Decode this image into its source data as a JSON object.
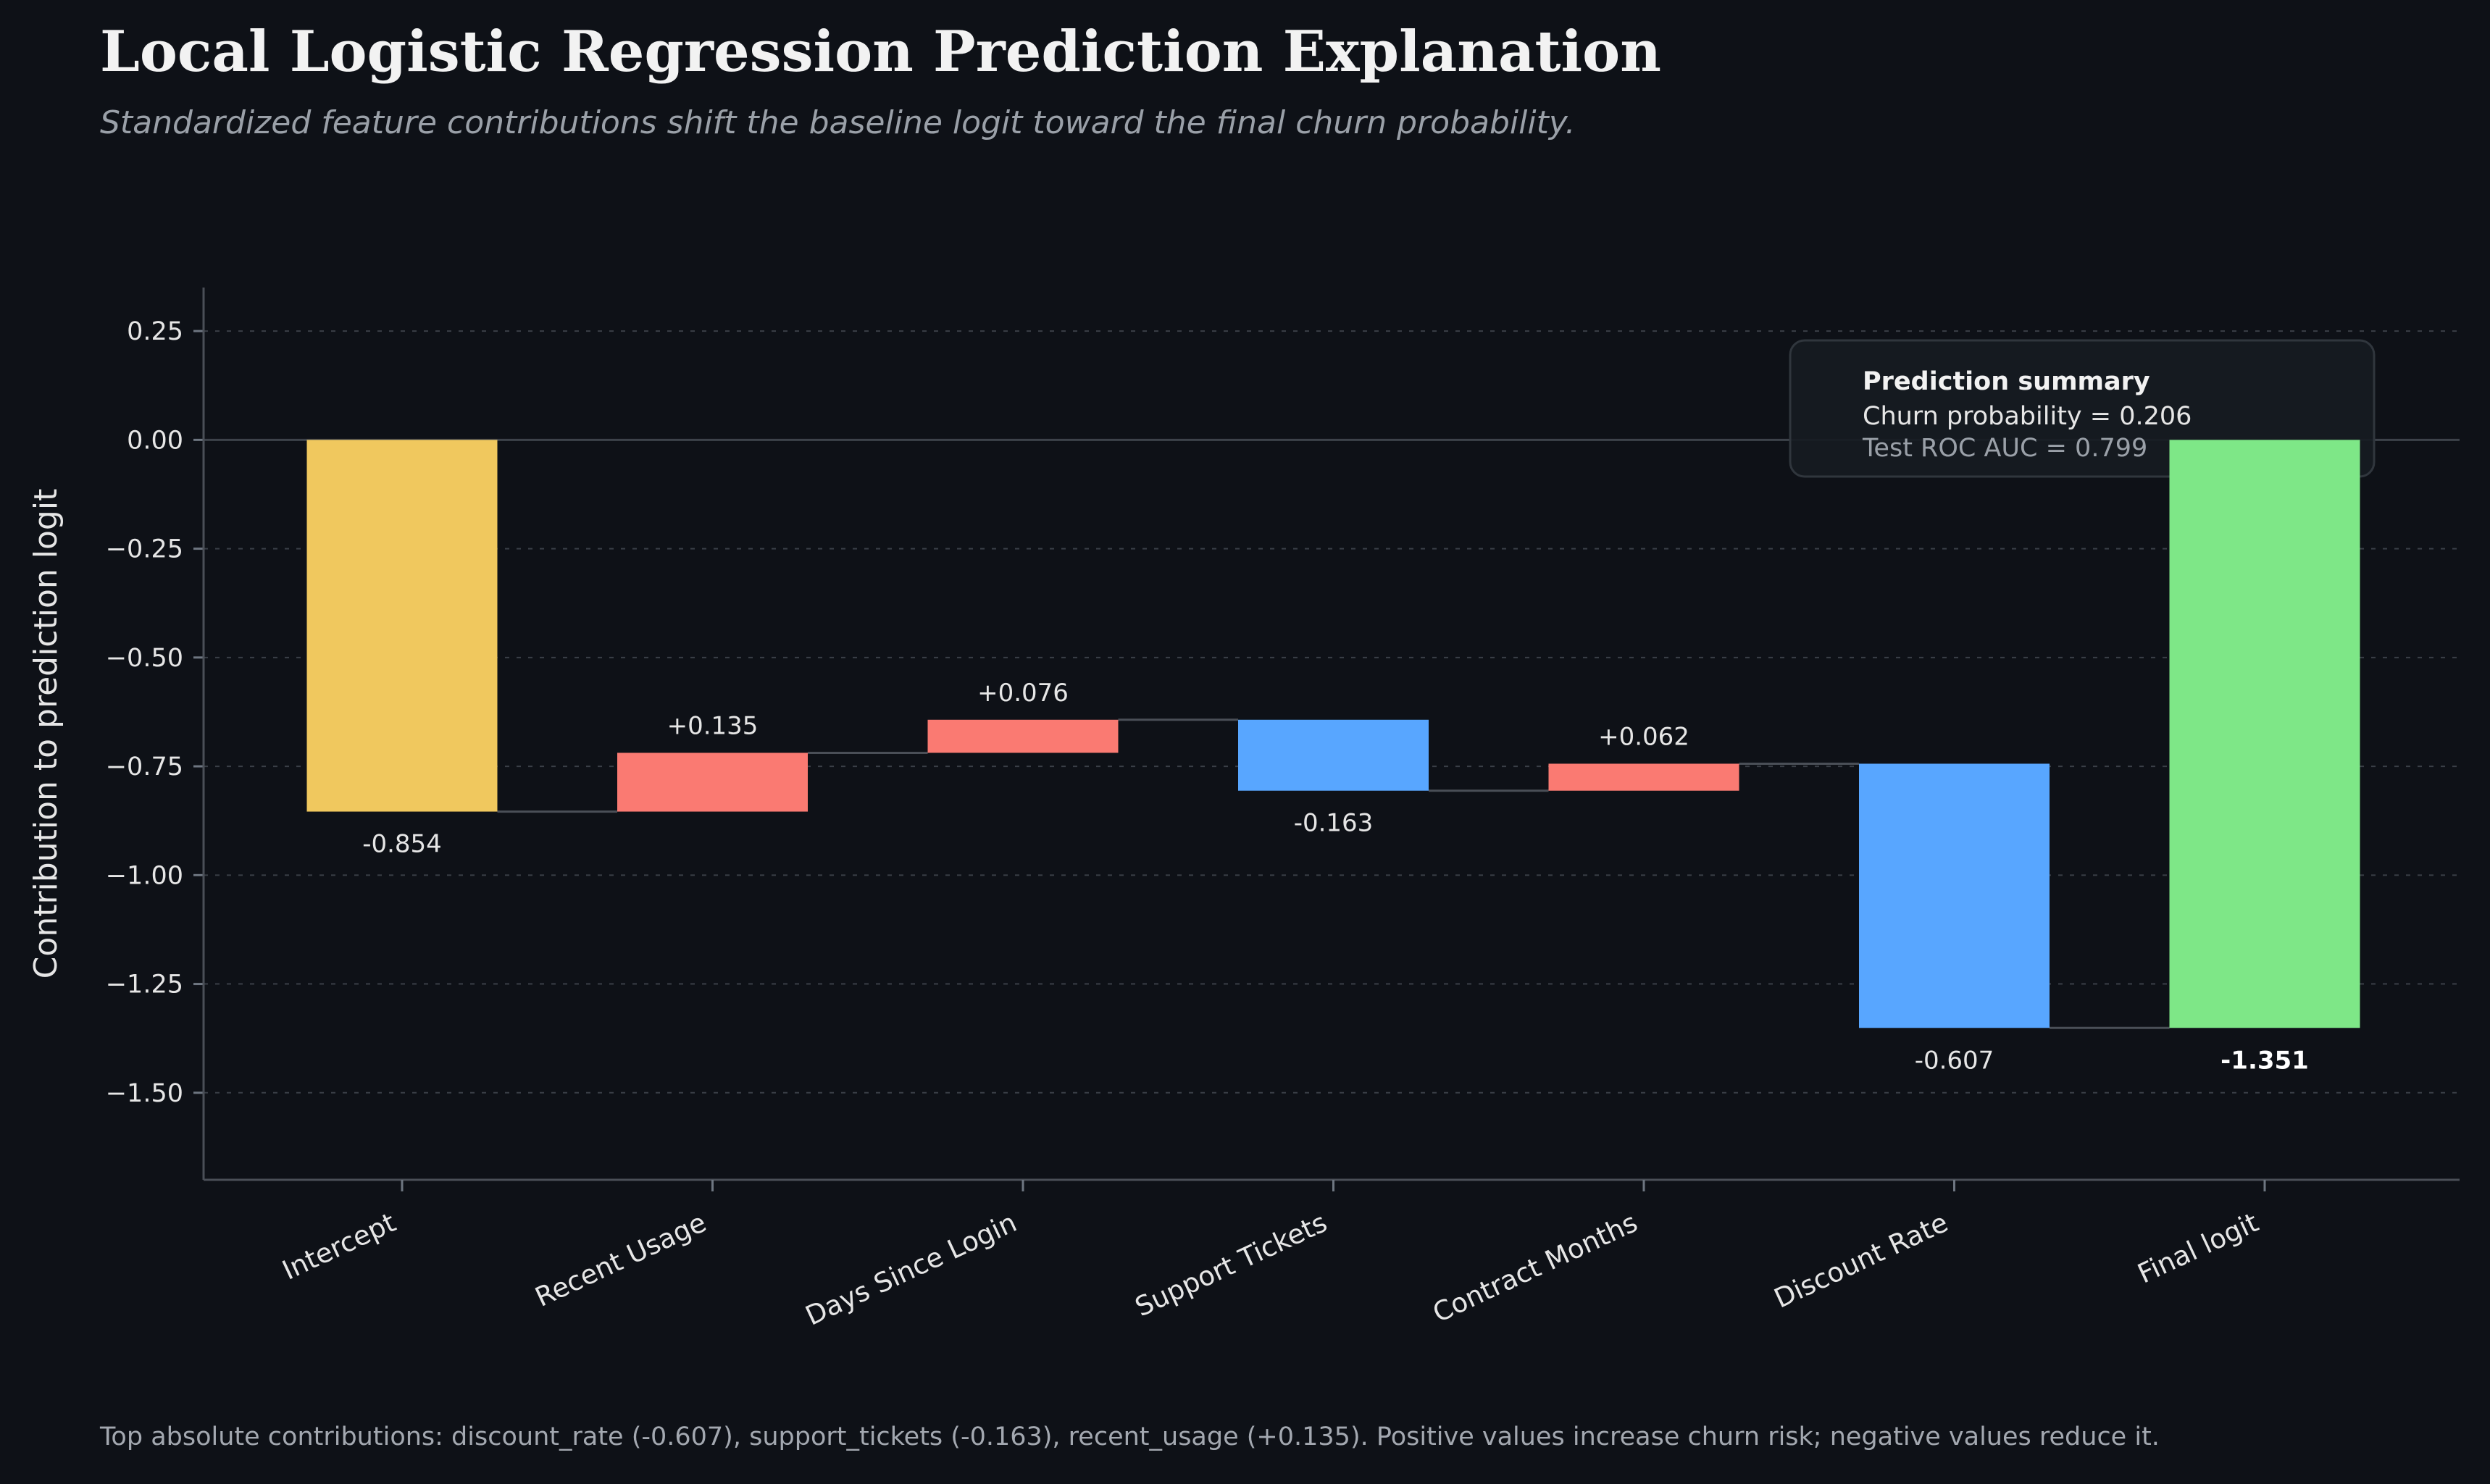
{
  "title": "Local Logistic Regression Prediction Explanation",
  "subtitle": "Standardized feature contributions shift the baseline logit toward the final churn probability.",
  "footer": "Top absolute contributions: discount_rate (-0.607), support_tickets (-0.163), recent_usage (+0.135). Positive values increase churn risk; negative values reduce it.",
  "summary": {
    "heading": "Prediction summary",
    "line1": "Churn probability = 0.206",
    "line2": "Test ROC AUC = 0.799"
  },
  "colors": {
    "background": "#0e1117",
    "intercept": "#f0c85e",
    "positive": "#fa7a72",
    "negative": "#58a6ff",
    "final": "#7ee787",
    "grid": "#3a3f47",
    "text": "#e6e6e6"
  },
  "chart_data": {
    "type": "waterfall",
    "ylabel": "Contribution to prediction logit",
    "xlabel": "",
    "ylim": [
      -1.7,
      0.35
    ],
    "yticks": [
      0.25,
      0.0,
      -0.25,
      -0.5,
      -0.75,
      -1.0,
      -1.25,
      -1.5
    ],
    "ytick_labels": [
      "0.25",
      "0.00",
      "−0.25",
      "−0.50",
      "−0.75",
      "−1.00",
      "−1.25",
      "−1.50"
    ],
    "grid": "horizontal dotted",
    "categories": [
      "Intercept",
      "Recent Usage",
      "Days Since Login",
      "Support Tickets",
      "Contract Months",
      "Discount Rate",
      "Final logit"
    ],
    "values": [
      -0.854,
      0.135,
      0.076,
      -0.163,
      0.062,
      -0.607,
      -1.351
    ],
    "kinds": [
      "intercept",
      "positive",
      "positive",
      "negative",
      "positive",
      "negative",
      "final"
    ],
    "value_labels": [
      "-0.854",
      "+0.135",
      "+0.076",
      "-0.163",
      "+0.062",
      "-0.607",
      "-1.351"
    ]
  }
}
